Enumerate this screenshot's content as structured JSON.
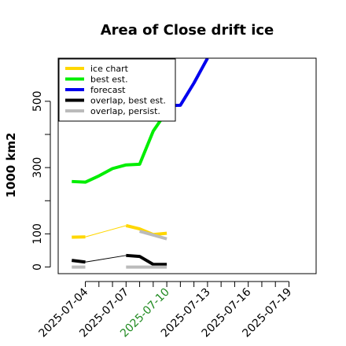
{
  "chart_data": {
    "type": "line",
    "title": "Area of Close drift ice",
    "xlabel": "",
    "ylabel": "1000 km2",
    "x_start": "2025-07-02",
    "x_ticks": [
      "2025-07-04",
      "2025-07-07",
      "2025-07-10",
      "2025-07-13",
      "2025-07-16",
      "2025-07-19"
    ],
    "highlight_tick": "2025-07-10",
    "highlight_color": "#228b22",
    "xlim": [
      "2025-07-02",
      "2025-07-21"
    ],
    "y_ticks": [
      0,
      100,
      300,
      500
    ],
    "ylim": [
      -20,
      630
    ],
    "legend_position": "top-left",
    "series": [
      {
        "name": "ice chart",
        "color": "#ffd700",
        "width": "thick",
        "segments": [
          [
            [
              "2025-07-03",
              90
            ],
            [
              "2025-07-04",
              91
            ]
          ],
          [
            [
              "2025-07-07",
              125
            ],
            [
              "2025-07-08",
              115
            ],
            [
              "2025-07-09",
              98
            ],
            [
              "2025-07-10",
              102
            ]
          ]
        ],
        "connector": [
          [
            "2025-07-04",
            91
          ],
          [
            "2025-07-07",
            125
          ]
        ]
      },
      {
        "name": "best est.",
        "color": "#00ee00",
        "width": "thick",
        "segments": [
          [
            [
              "2025-07-03",
              258
            ],
            [
              "2025-07-04",
              256
            ],
            [
              "2025-07-05",
              275
            ],
            [
              "2025-07-06",
              297
            ],
            [
              "2025-07-07",
              308
            ],
            [
              "2025-07-08",
              310
            ],
            [
              "2025-07-09",
              410
            ],
            [
              "2025-07-10",
              470
            ]
          ]
        ]
      },
      {
        "name": "forecast",
        "color": "#0000ee",
        "width": "thick",
        "segments": [
          [
            [
              "2025-07-10",
              487
            ],
            [
              "2025-07-11",
              488
            ],
            [
              "2025-07-12",
              555
            ],
            [
              "2025-07-13",
              630
            ]
          ]
        ]
      },
      {
        "name": "overlap, best est.",
        "color": "#000000",
        "width": "thick",
        "segments": [
          [
            [
              "2025-07-03",
              20
            ],
            [
              "2025-07-04",
              15
            ]
          ],
          [
            [
              "2025-07-07",
              35
            ],
            [
              "2025-07-08",
              32
            ],
            [
              "2025-07-09",
              8
            ],
            [
              "2025-07-10",
              8
            ]
          ]
        ],
        "connector": [
          [
            "2025-07-04",
            15
          ],
          [
            "2025-07-07",
            35
          ]
        ]
      },
      {
        "name": "overlap, persist.",
        "color": "#bbbbbb",
        "width": "thick",
        "segments": [
          [
            [
              "2025-07-03",
              0
            ],
            [
              "2025-07-04",
              0
            ]
          ],
          [
            [
              "2025-07-07",
              0
            ],
            [
              "2025-07-10",
              0
            ]
          ],
          [
            [
              "2025-07-08",
              108
            ],
            [
              "2025-07-10",
              85
            ]
          ]
        ]
      }
    ]
  }
}
